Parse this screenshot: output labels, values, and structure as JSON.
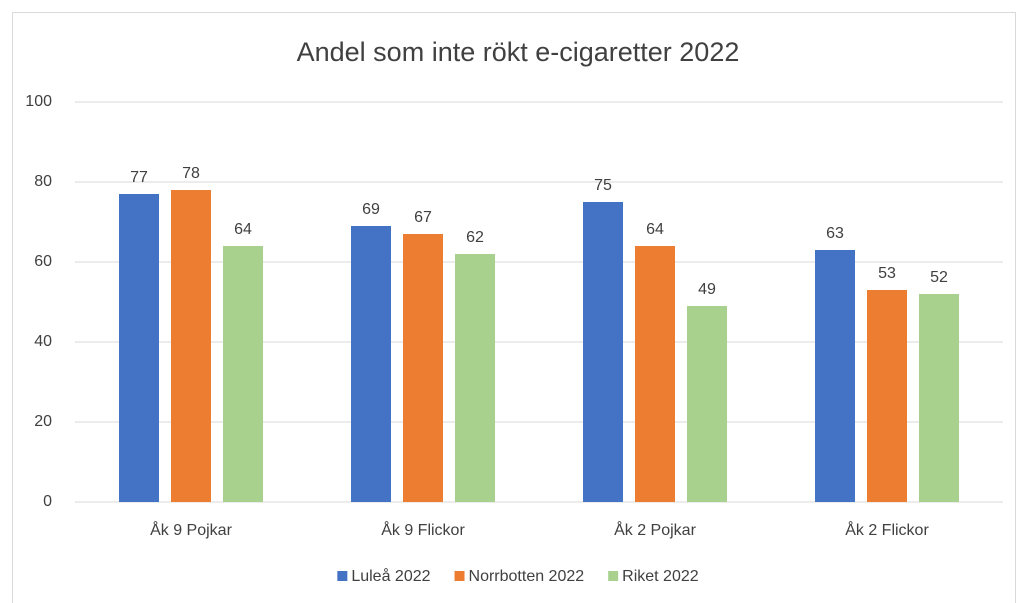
{
  "chart_data": {
    "type": "bar",
    "title": "Andel som inte rökt e-cigaretter 2022",
    "categories": [
      "Åk 9 Pojkar",
      "Åk 9 Flickor",
      "Åk 2 Pojkar",
      "Åk 2 Flickor"
    ],
    "series": [
      {
        "name": "Luleå 2022",
        "color": "#4472c4",
        "values": [
          77,
          69,
          75,
          63
        ]
      },
      {
        "name": "Norrbotten 2022",
        "color": "#ed7d31",
        "values": [
          78,
          67,
          64,
          53
        ]
      },
      {
        "name": "Riket 2022",
        "color": "#a9d18e",
        "values": [
          64,
          62,
          49,
          52
        ]
      }
    ],
    "ylim": [
      0,
      100
    ],
    "yticks": [
      0,
      20,
      40,
      60,
      80,
      100
    ],
    "grid": true,
    "legend": "bottom"
  }
}
